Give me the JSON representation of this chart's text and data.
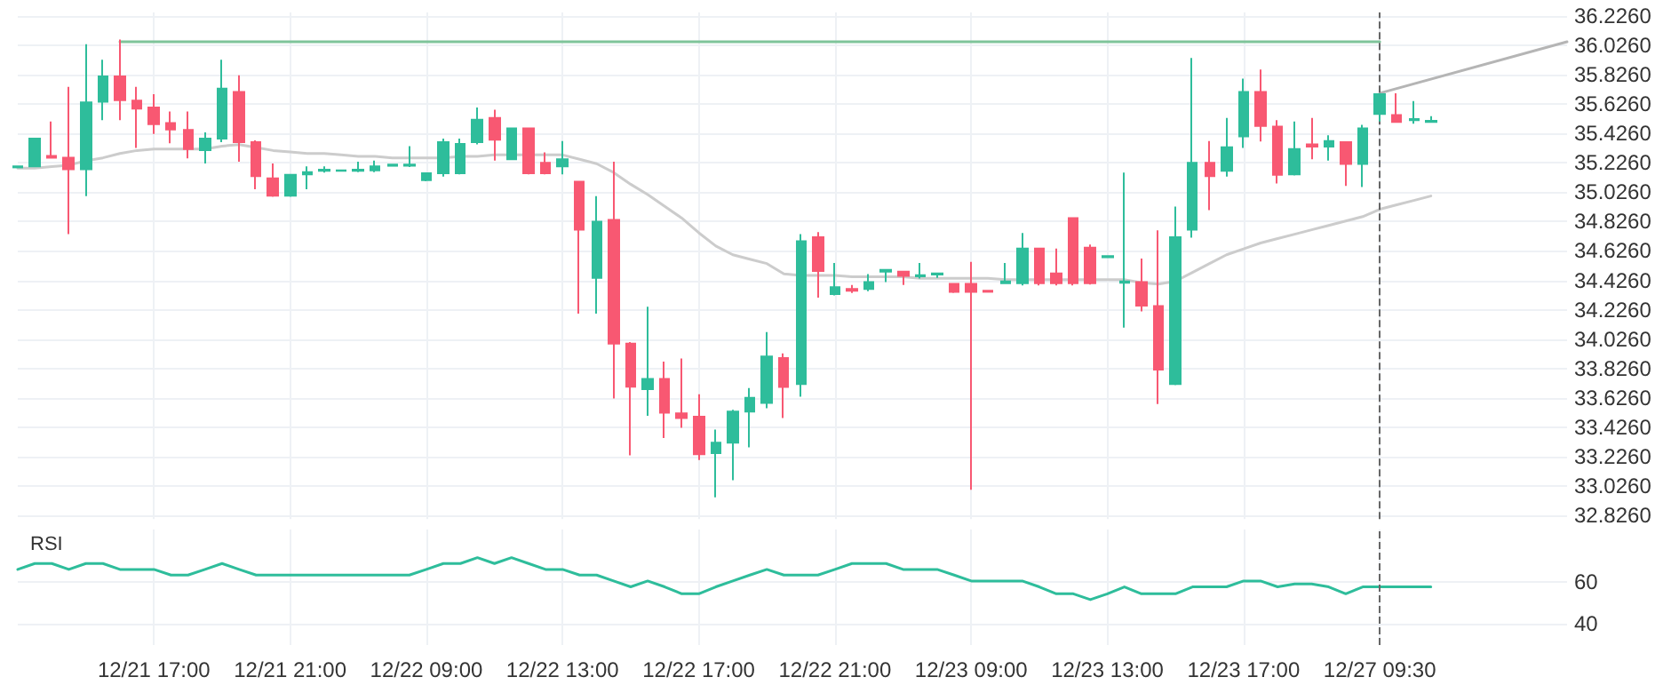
{
  "chart_data": [
    {
      "type": "candlestick",
      "tick_labels": "y",
      "grid": true,
      "categories": [
        null,
        null,
        null,
        null,
        null,
        null,
        null,
        null,
        "12/21 17:00",
        null,
        null,
        null,
        null,
        null,
        null,
        null,
        "12/21 21:00",
        null,
        null,
        null,
        null,
        null,
        null,
        null,
        "12/22 09:00",
        null,
        null,
        null,
        null,
        null,
        null,
        null,
        "12/22 13:00",
        null,
        null,
        null,
        null,
        null,
        null,
        null,
        "12/22 17:00",
        null,
        null,
        null,
        null,
        null,
        null,
        null,
        "12/22 21:00",
        null,
        null,
        null,
        null,
        null,
        null,
        null,
        "12/23 09:00",
        null,
        null,
        null,
        null,
        null,
        null,
        null,
        "12/23 13:00",
        null,
        null,
        null,
        null,
        null,
        null,
        null,
        "12/23 17:00",
        null,
        null,
        null,
        null,
        null,
        null,
        null,
        "12/27 09:30",
        null,
        null,
        null,
        null,
        null,
        null,
        null,
        null,
        null,
        null,
        null
      ],
      "ohlc": [
        [
          35.195,
          35.202,
          35.195,
          35.202
        ],
        [
          35.202,
          35.391,
          35.202,
          35.391
        ],
        [
          35.273,
          35.508,
          35.257,
          35.261
        ],
        [
          35.261,
          35.744,
          34.74,
          35.183
        ],
        [
          35.183,
          36.034,
          35.0,
          35.638
        ],
        [
          35.642,
          35.928,
          35.516,
          35.814
        ],
        [
          35.814,
          36.065,
          35.516,
          35.653
        ],
        [
          35.65,
          35.744,
          35.328,
          35.595
        ],
        [
          35.602,
          35.693,
          35.422,
          35.489
        ],
        [
          35.497,
          35.575,
          35.359,
          35.453
        ],
        [
          35.45,
          35.575,
          35.257,
          35.32
        ],
        [
          35.312,
          35.434,
          35.222,
          35.391
        ],
        [
          35.391,
          35.928,
          35.367,
          35.732
        ],
        [
          35.708,
          35.822,
          35.234,
          35.367
        ],
        [
          35.367,
          35.379,
          35.046,
          35.136
        ],
        [
          35.12,
          35.222,
          34.995,
          35.002
        ],
        [
          35.002,
          35.144,
          34.995,
          35.144
        ],
        [
          35.148,
          35.202,
          35.046,
          35.163
        ],
        [
          35.171,
          35.202,
          35.159,
          35.179
        ],
        [
          35.171,
          35.179,
          35.167,
          35.175
        ],
        [
          35.171,
          35.234,
          35.163,
          35.179
        ],
        [
          35.175,
          35.242,
          35.163,
          35.202
        ],
        [
          35.206,
          35.214,
          35.206,
          35.214
        ],
        [
          35.206,
          35.34,
          35.198,
          35.214
        ],
        [
          35.108,
          35.155,
          35.1,
          35.155
        ],
        [
          35.155,
          35.391,
          35.132,
          35.367
        ],
        [
          35.155,
          35.391,
          35.148,
          35.355
        ],
        [
          35.367,
          35.602,
          35.351,
          35.52
        ],
        [
          35.532,
          35.587,
          35.242,
          35.383
        ],
        [
          35.25,
          35.461,
          35.25,
          35.461
        ],
        [
          35.461,
          35.461,
          35.148,
          35.155
        ],
        [
          35.226,
          35.297,
          35.148,
          35.155
        ],
        [
          35.202,
          35.375,
          35.148,
          35.25
        ],
        [
          35.097,
          35.097,
          34.199,
          34.771
        ],
        [
          34.442,
          35.0,
          34.199,
          34.826
        ],
        [
          34.838,
          35.234,
          33.622,
          33.995
        ],
        [
          33.995,
          34.006,
          33.234,
          33.701
        ],
        [
          33.685,
          34.246,
          33.504,
          33.755
        ],
        [
          33.755,
          33.873,
          33.352,
          33.524
        ],
        [
          33.52,
          33.893,
          33.422,
          33.489
        ],
        [
          33.497,
          33.65,
          33.202,
          33.242
        ],
        [
          33.25,
          33.41,
          32.948,
          33.32
        ],
        [
          33.32,
          33.544,
          33.065,
          33.532
        ],
        [
          33.532,
          33.693,
          33.289,
          33.626
        ],
        [
          33.591,
          34.073,
          33.555,
          33.908
        ],
        [
          33.897,
          33.928,
          33.489,
          33.7
        ],
        [
          33.72,
          34.74,
          33.634,
          34.693
        ],
        [
          34.72,
          34.755,
          34.308,
          34.489
        ],
        [
          34.332,
          34.544,
          34.324,
          34.379
        ],
        [
          34.367,
          34.395,
          34.34,
          34.355
        ],
        [
          34.367,
          34.469,
          34.352,
          34.414
        ],
        [
          34.485,
          34.497,
          34.414,
          34.497
        ],
        [
          34.485,
          34.485,
          34.395,
          34.457
        ],
        [
          34.453,
          34.544,
          34.438,
          34.461
        ],
        [
          34.465,
          34.473,
          34.442,
          34.473
        ],
        [
          34.402,
          34.402,
          34.34,
          34.348
        ],
        [
          34.402,
          34.552,
          33.0,
          34.348
        ],
        [
          34.355,
          34.355,
          34.348,
          34.348
        ],
        [
          34.406,
          34.544,
          34.402,
          34.418
        ],
        [
          34.406,
          34.748,
          34.391,
          34.642
        ],
        [
          34.642,
          34.642,
          34.391,
          34.406
        ],
        [
          34.473,
          34.642,
          34.391,
          34.406
        ],
        [
          34.85,
          34.85,
          34.391,
          34.406
        ],
        [
          34.649,
          34.669,
          34.398,
          34.406
        ],
        [
          34.583,
          34.591,
          34.583,
          34.591
        ],
        [
          34.41,
          35.159,
          34.104,
          34.418
        ],
        [
          34.414,
          34.575,
          34.214,
          34.253
        ],
        [
          34.25,
          34.767,
          33.583,
          33.818
        ],
        [
          33.72,
          34.928,
          33.712,
          34.72
        ],
        [
          34.771,
          35.94,
          34.716,
          35.226
        ],
        [
          35.226,
          35.375,
          34.904,
          35.136
        ],
        [
          35.171,
          35.532,
          35.132,
          35.332
        ],
        [
          35.406,
          35.799,
          35.328,
          35.708
        ],
        [
          35.708,
          35.861,
          35.371,
          35.477
        ],
        [
          35.473,
          35.516,
          35.085,
          35.144
        ],
        [
          35.148,
          35.508,
          35.14,
          35.32
        ],
        [
          35.351,
          35.532,
          35.25,
          35.336
        ],
        [
          35.336,
          35.414,
          35.242,
          35.375
        ],
        [
          35.367,
          35.367,
          35.069,
          35.218
        ],
        [
          35.218,
          35.485,
          35.061,
          35.461
        ],
        [
          35.559,
          35.693,
          35.508,
          35.693
        ],
        [
          35.551,
          35.7,
          35.504,
          35.504
        ],
        [
          35.516,
          35.646,
          35.493,
          35.524
        ],
        [
          35.504,
          35.544,
          35.501,
          35.512
        ],
        null,
        null,
        null,
        null,
        null,
        null,
        null,
        null
      ],
      "colors": [
        "#2ebd9b",
        "#2ebd9b",
        "#f85872",
        "#f85872",
        "#2ebd9b",
        "#2ebd9b",
        "#f85872",
        "#f85872",
        "#f85872",
        "#f85872",
        "#f85872",
        "#2ebd9b",
        "#2ebd9b",
        "#f85872",
        "#f85872",
        "#f85872",
        "#2ebd9b",
        "#2ebd9b",
        "#2ebd9b",
        "#2ebd9b",
        "#2ebd9b",
        "#2ebd9b",
        "#2ebd9b",
        "#2ebd9b",
        "#2ebd9b",
        "#2ebd9b",
        "#2ebd9b",
        "#2ebd9b",
        "#f85872",
        "#2ebd9b",
        "#f85872",
        "#f85872",
        "#2ebd9b",
        "#f85872",
        "#2ebd9b",
        "#f85872",
        "#f85872",
        "#2ebd9b",
        "#f85872",
        "#f85872",
        "#f85872",
        "#2ebd9b",
        "#2ebd9b",
        "#2ebd9b",
        "#2ebd9b",
        "#f85872",
        "#2ebd9b",
        "#f85872",
        "#2ebd9b",
        "#f85872",
        "#2ebd9b",
        "#2ebd9b",
        "#f85872",
        "#2ebd9b",
        "#2ebd9b",
        "#f85872",
        "#f85872",
        "#f85872",
        "#2ebd9b",
        "#2ebd9b",
        "#f85872",
        "#f85872",
        "#f85872",
        "#f85872",
        "#2ebd9b",
        "#2ebd9b",
        "#f85872",
        "#f85872",
        "#2ebd9b",
        "#2ebd9b",
        "#f85872",
        "#2ebd9b",
        "#2ebd9b",
        "#f85872",
        "#f85872",
        "#2ebd9b",
        "#f85872",
        "#2ebd9b",
        "#f85872",
        "#2ebd9b",
        "#2ebd9b",
        "#f85872",
        "#2ebd9b",
        "#2ebd9b",
        null,
        null,
        null,
        null,
        null,
        null,
        null,
        null
      ],
      "series": [
        {
          "type": "line",
          "color": "#cccccc",
          "values": [
            35.19,
            35.19,
            35.2,
            35.21,
            35.24,
            35.26,
            35.29,
            35.31,
            35.32,
            35.32,
            35.32,
            35.32,
            35.34,
            35.35,
            35.33,
            35.31,
            35.3,
            35.29,
            35.29,
            35.28,
            35.27,
            35.27,
            35.26,
            35.26,
            35.26,
            35.26,
            35.27,
            35.27,
            35.28,
            35.28,
            35.28,
            35.28,
            35.28,
            35.25,
            35.22,
            35.16,
            35.08,
            35.01,
            34.93,
            34.85,
            34.75,
            34.66,
            34.6,
            34.57,
            34.54,
            34.47,
            34.46,
            34.46,
            34.46,
            34.45,
            34.45,
            34.45,
            34.45,
            34.44,
            34.44,
            34.44,
            34.44,
            34.44,
            34.43,
            34.43,
            34.43,
            34.43,
            34.43,
            34.43,
            34.43,
            34.43,
            34.41,
            34.4,
            34.42,
            34.48,
            34.54,
            34.6,
            34.64,
            34.68,
            34.71,
            34.74,
            34.77,
            34.8,
            34.83,
            34.86,
            34.91,
            34.94,
            34.97,
            35.0,
            null,
            null,
            null,
            null,
            null,
            null,
            null,
            null
          ]
        },
        {
          "type": "line",
          "color": "#7fc49a",
          "values": [
            null,
            null,
            null,
            null,
            null,
            null,
            36.05,
            36.05,
            36.05,
            36.05,
            36.05,
            36.05,
            36.05,
            36.05,
            36.05,
            36.05,
            36.05,
            36.05,
            36.05,
            36.05,
            36.05,
            36.05,
            36.05,
            36.05,
            36.05,
            36.05,
            36.05,
            36.05,
            36.05,
            36.05,
            36.05,
            36.05,
            36.05,
            36.05,
            36.05,
            36.05,
            36.05,
            36.05,
            36.05,
            36.05,
            36.05,
            36.05,
            36.05,
            36.05,
            36.05,
            36.05,
            36.05,
            36.05,
            36.05,
            36.05,
            36.05,
            36.05,
            36.05,
            36.05,
            36.05,
            36.05,
            36.05,
            36.05,
            36.05,
            36.05,
            36.05,
            36.05,
            36.05,
            36.05,
            36.05,
            36.05,
            36.05,
            36.05,
            36.05,
            36.05,
            36.05,
            36.05,
            36.05,
            36.05,
            36.05,
            36.05,
            36.05,
            36.05,
            36.05,
            36.05,
            36.05,
            null,
            null,
            null,
            null,
            null,
            null,
            null,
            null,
            null,
            null,
            null
          ]
        },
        {
          "type": "line",
          "color": "#b5b5b5",
          "values": [
            null,
            null,
            null,
            null,
            null,
            null,
            null,
            null,
            null,
            null,
            null,
            null,
            null,
            null,
            null,
            null,
            null,
            null,
            null,
            null,
            null,
            null,
            null,
            null,
            null,
            null,
            null,
            null,
            null,
            null,
            null,
            null,
            null,
            null,
            null,
            null,
            null,
            null,
            null,
            null,
            null,
            null,
            null,
            null,
            null,
            null,
            null,
            null,
            null,
            null,
            null,
            null,
            null,
            null,
            null,
            null,
            null,
            null,
            null,
            null,
            null,
            null,
            null,
            null,
            null,
            null,
            null,
            null,
            null,
            null,
            null,
            null,
            null,
            null,
            null,
            null,
            null,
            null,
            null,
            null,
            35.7,
            null,
            null,
            null,
            null,
            null,
            null,
            null,
            null,
            null,
            null,
            36.05
          ]
        }
      ],
      "ylim": [
        32.8,
        36.25
      ],
      "yticks": [
        {
          "value": 32.826,
          "label": "32.8260"
        },
        {
          "value": 33.026,
          "label": "33.0260"
        },
        {
          "value": 33.226,
          "label": "33.2260"
        },
        {
          "value": 33.426,
          "label": "33.4260"
        },
        {
          "value": 33.626,
          "label": "33.6260"
        },
        {
          "value": 33.826,
          "label": "33.8260"
        },
        {
          "value": 34.026,
          "label": "34.0260"
        },
        {
          "value": 34.226,
          "label": "34.2260"
        },
        {
          "value": 34.426,
          "label": "34.4260"
        },
        {
          "value": 34.626,
          "label": "34.6260"
        },
        {
          "value": 34.826,
          "label": "34.8260"
        },
        {
          "value": 35.026,
          "label": "35.0260"
        },
        {
          "value": 35.226,
          "label": "35.2260"
        },
        {
          "value": 35.426,
          "label": "35.4260"
        },
        {
          "value": 35.626,
          "label": "35.6260"
        },
        {
          "value": 35.826,
          "label": "35.8260"
        },
        {
          "value": 36.026,
          "label": "36.0260"
        },
        {
          "value": 36.226,
          "label": "36.2260"
        }
      ],
      "ref_lines": [
        {
          "axis": "x",
          "value": "12/27 09:30",
          "color": "#666666",
          "line_style": "dashed"
        }
      ]
    },
    {
      "type": "line",
      "title": "RSI",
      "grid": true,
      "color": "#2ebd9b",
      "categories": [
        null,
        null,
        null,
        null,
        null,
        null,
        null,
        null,
        "12/21 17:00",
        null,
        null,
        null,
        null,
        null,
        null,
        null,
        "12/21 21:00",
        null,
        null,
        null,
        null,
        null,
        null,
        null,
        "12/22 09:00",
        null,
        null,
        null,
        null,
        null,
        null,
        null,
        "12/22 13:00",
        null,
        null,
        null,
        null,
        null,
        null,
        null,
        "12/22 17:00",
        null,
        null,
        null,
        null,
        null,
        null,
        null,
        "12/22 21:00",
        null,
        null,
        null,
        null,
        null,
        null,
        null,
        "12/23 09:00",
        null,
        null,
        null,
        null,
        null,
        null,
        null,
        "12/23 13:00",
        null,
        null,
        null,
        null,
        null,
        null,
        null,
        "12/23 17:00",
        null,
        null,
        null,
        null,
        null,
        null,
        null,
        "12/27 09:30",
        null,
        null,
        null,
        null,
        null,
        null,
        null,
        null,
        null,
        null,
        null
      ],
      "values": [
        66,
        68.8,
        68.8,
        66,
        68.8,
        68.8,
        66,
        66,
        66,
        63.3,
        63.3,
        66,
        68.8,
        66,
        63.3,
        63.3,
        63.3,
        63.3,
        63.3,
        63.3,
        63.3,
        63.3,
        63.3,
        63.3,
        66,
        68.8,
        68.8,
        71.6,
        68.8,
        71.6,
        68.8,
        66,
        66,
        63.3,
        63.3,
        60.5,
        57.7,
        60.5,
        57.7,
        54.4,
        54.4,
        57.7,
        60.5,
        63.3,
        66,
        63.3,
        63.3,
        63.3,
        66,
        68.8,
        68.8,
        68.8,
        66,
        66,
        66,
        63.3,
        60.5,
        60.5,
        60.5,
        60.5,
        57.7,
        54.4,
        54.4,
        51.6,
        54.4,
        57.7,
        54.4,
        54.4,
        54.4,
        57.7,
        57.7,
        57.7,
        60.5,
        60.5,
        57.7,
        59.1,
        59.1,
        57.7,
        54.4,
        57.7,
        57.7,
        57.7,
        57.7,
        57.7,
        null,
        null,
        null,
        null,
        null,
        null,
        null,
        null
      ],
      "ylim": [
        30,
        85
      ],
      "yticks": [
        40,
        60
      ],
      "ref_lines": [
        {
          "axis": "x",
          "value": "12/27 09:30",
          "color": "#666666",
          "line_style": "dashed"
        }
      ]
    }
  ]
}
